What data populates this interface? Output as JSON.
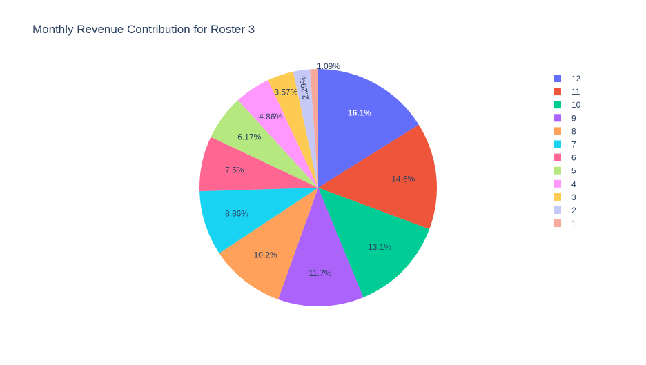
{
  "chart_data": {
    "type": "pie",
    "title": "Monthly Revenue Contribution for Roster 3",
    "categories": [
      "12",
      "11",
      "10",
      "9",
      "8",
      "7",
      "6",
      "5",
      "4",
      "3",
      "2",
      "1"
    ],
    "values": [
      16.1,
      14.6,
      13.1,
      11.7,
      10.2,
      8.86,
      7.5,
      6.17,
      4.86,
      3.57,
      2.29,
      1.09
    ],
    "labels": [
      "16.1%",
      "14.6%",
      "13.1%",
      "11.7%",
      "10.2%",
      "8.86%",
      "7.5%",
      "6.17%",
      "4.86%",
      "3.57%",
      "2.29%",
      "1.09%"
    ],
    "colors": [
      "#636efa",
      "#EF553B",
      "#00cc96",
      "#ab63fa",
      "#FFA15A",
      "#19d3f3",
      "#FF6692",
      "#B6E880",
      "#FF97FF",
      "#FECB52",
      "#c6c9f5",
      "#f6a99b"
    ],
    "legend": {
      "position": "right",
      "entries": [
        "12",
        "11",
        "10",
        "9",
        "8",
        "7",
        "6",
        "5",
        "4",
        "3",
        "2",
        "1"
      ]
    },
    "direction": "clockwise",
    "start_angle": "top"
  }
}
